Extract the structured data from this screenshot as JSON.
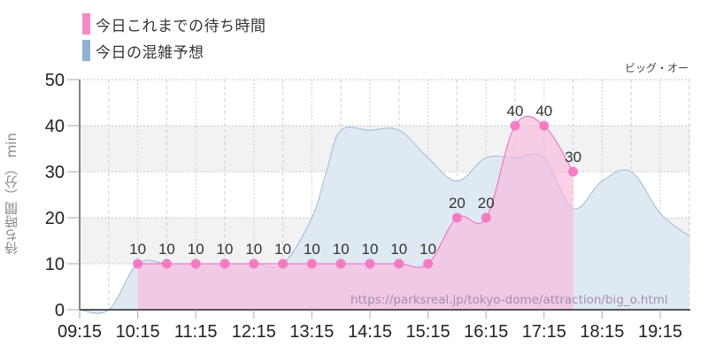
{
  "legend": {
    "items": [
      {
        "label": "今日これまでの待ち時間",
        "color": "#f68ac8"
      },
      {
        "label": "今日の混雑予想",
        "color": "#8fb2d2"
      }
    ]
  },
  "attraction_name": "ビッグ・オー",
  "y_axis_title": "待ち時間（分） min",
  "watermark": "https://parksreal.jp/tokyo-dome/attraction/big_o.html",
  "colors": {
    "actual_fill": "#f9b9dc",
    "actual_line": "#f068b6",
    "actual_point": "#f472bf",
    "forecast_fill": "#dde8f1",
    "forecast_line": "#9cbbd6",
    "overlap_fill": "#e2c2df",
    "band": "#f2f2f2"
  },
  "chart_data": {
    "type": "area",
    "title": "",
    "xlabel": "",
    "ylabel": "待ち時間（分） min",
    "ylim": [
      0,
      50
    ],
    "yticks": [
      0,
      10,
      20,
      30,
      40,
      50
    ],
    "xticks": [
      "09:15",
      "10:15",
      "11:15",
      "12:15",
      "13:15",
      "14:15",
      "15:15",
      "16:15",
      "17:15",
      "18:15",
      "19:15"
    ],
    "grid": true,
    "legend_position": "top-left",
    "series": [
      {
        "name": "今日これまでの待ち時間",
        "type": "area-with-markers",
        "x": [
          "10:15",
          "10:45",
          "11:15",
          "11:45",
          "12:15",
          "12:45",
          "13:15",
          "13:45",
          "14:15",
          "14:45",
          "15:15",
          "15:45",
          "16:15",
          "16:45",
          "17:15",
          "17:45"
        ],
        "values": [
          10,
          10,
          10,
          10,
          10,
          10,
          10,
          10,
          10,
          10,
          10,
          20,
          20,
          40,
          40,
          30
        ]
      },
      {
        "name": "今日の混雑予想",
        "type": "area",
        "x": [
          "09:15",
          "09:45",
          "10:15",
          "10:45",
          "11:15",
          "11:45",
          "12:15",
          "12:45",
          "13:15",
          "13:30",
          "13:45",
          "14:15",
          "14:45",
          "15:15",
          "15:45",
          "16:15",
          "16:45",
          "17:15",
          "17:45",
          "18:15",
          "18:45",
          "19:15",
          "19:45"
        ],
        "values": [
          0,
          0,
          10,
          10,
          10,
          10,
          10,
          10,
          20,
          30,
          39,
          39,
          39,
          33,
          28,
          33,
          33,
          33,
          22,
          28,
          30,
          21,
          16
        ]
      }
    ]
  }
}
